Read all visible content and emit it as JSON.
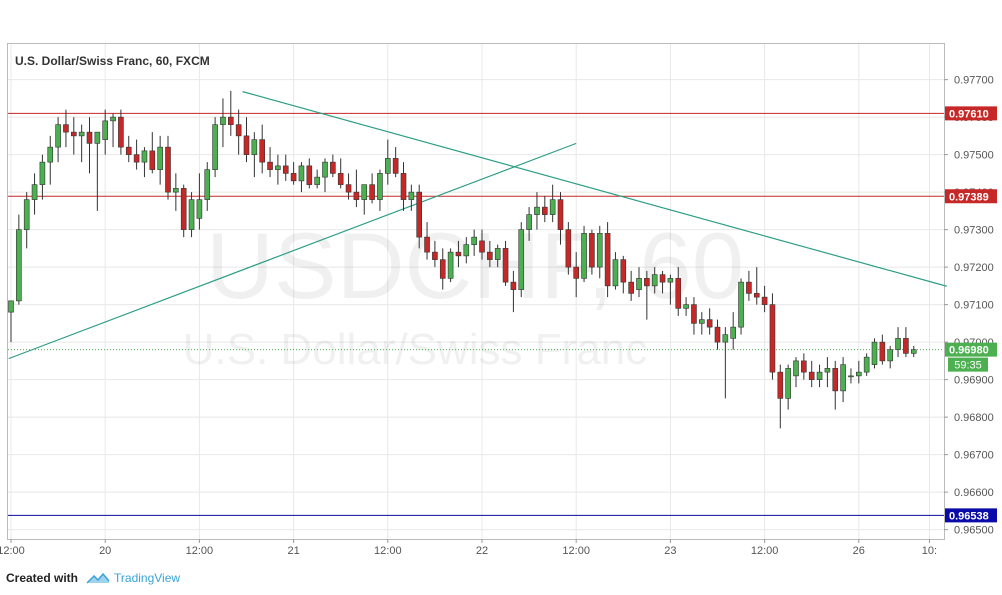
{
  "chart_data": {
    "type": "candlestick",
    "title": "U.S. Dollar/Swiss Franc, 60, FXCM",
    "watermark_symbol": "USDCHF, 60",
    "watermark_name": "U.S. Dollar/Swiss Franc",
    "ylim": [
      0.96475,
      0.97795
    ],
    "y_ticks": [
      "0.97700",
      "0.97600",
      "0.97500",
      "0.97400",
      "0.97300",
      "0.97200",
      "0.97100",
      "0.97000",
      "0.96900",
      "0.96800",
      "0.96700",
      "0.96600",
      "0.96500"
    ],
    "x_ticks": [
      {
        "i": 0,
        "label": "12:00"
      },
      {
        "i": 12,
        "label": "20"
      },
      {
        "i": 24,
        "label": "12:00"
      },
      {
        "i": 36,
        "label": "21"
      },
      {
        "i": 48,
        "label": "12:00"
      },
      {
        "i": 60,
        "label": "22"
      },
      {
        "i": 72,
        "label": "12:00"
      },
      {
        "i": 84,
        "label": "23"
      },
      {
        "i": 96,
        "label": "12:00"
      },
      {
        "i": 108,
        "label": "26"
      },
      {
        "i": 117,
        "label": "10:"
      }
    ],
    "candles": [
      [
        0.9708,
        0.9711,
        0.97,
        0.9711
      ],
      [
        0.9711,
        0.9734,
        0.971,
        0.973
      ],
      [
        0.973,
        0.974,
        0.9725,
        0.9738
      ],
      [
        0.9738,
        0.9745,
        0.9734,
        0.9742
      ],
      [
        0.9742,
        0.975,
        0.9738,
        0.9748
      ],
      [
        0.9748,
        0.9755,
        0.9742,
        0.9752
      ],
      [
        0.9752,
        0.976,
        0.9748,
        0.9758
      ],
      [
        0.9758,
        0.9762,
        0.9752,
        0.9756
      ],
      [
        0.9756,
        0.976,
        0.975,
        0.9755
      ],
      [
        0.9755,
        0.9758,
        0.9748,
        0.9756
      ],
      [
        0.9756,
        0.976,
        0.9745,
        0.9753
      ],
      [
        0.9753,
        0.9756,
        0.9735,
        0.9756
      ],
      [
        0.9754,
        0.9762,
        0.975,
        0.9759
      ],
      [
        0.9759,
        0.9761,
        0.9752,
        0.976
      ],
      [
        0.976,
        0.9762,
        0.975,
        0.9752
      ],
      [
        0.9752,
        0.9755,
        0.9748,
        0.975
      ],
      [
        0.975,
        0.9754,
        0.9746,
        0.9748
      ],
      [
        0.9748,
        0.9752,
        0.9744,
        0.9751
      ],
      [
        0.9751,
        0.9756,
        0.9745,
        0.9746
      ],
      [
        0.9746,
        0.9755,
        0.9742,
        0.9752
      ],
      [
        0.9752,
        0.9755,
        0.9738,
        0.974
      ],
      [
        0.974,
        0.9745,
        0.9735,
        0.9741
      ],
      [
        0.9741,
        0.9742,
        0.9728,
        0.973
      ],
      [
        0.973,
        0.974,
        0.9728,
        0.9738
      ],
      [
        0.9733,
        0.9745,
        0.973,
        0.9738
      ],
      [
        0.9738,
        0.9748,
        0.9735,
        0.9746
      ],
      [
        0.9746,
        0.976,
        0.9744,
        0.9758
      ],
      [
        0.9758,
        0.9765,
        0.9752,
        0.976
      ],
      [
        0.976,
        0.9767,
        0.9755,
        0.9758
      ],
      [
        0.9758,
        0.9762,
        0.975,
        0.9755
      ],
      [
        0.9755,
        0.976,
        0.9748,
        0.975
      ],
      [
        0.975,
        0.9756,
        0.9744,
        0.9754
      ],
      [
        0.9754,
        0.9758,
        0.9745,
        0.9748
      ],
      [
        0.9748,
        0.9752,
        0.9744,
        0.9746
      ],
      [
        0.9746,
        0.975,
        0.9742,
        0.9747
      ],
      [
        0.9747,
        0.975,
        0.9743,
        0.9745
      ],
      [
        0.9745,
        0.9748,
        0.9742,
        0.9743
      ],
      [
        0.9743,
        0.9748,
        0.974,
        0.9747
      ],
      [
        0.9747,
        0.9749,
        0.9741,
        0.9742
      ],
      [
        0.9742,
        0.9746,
        0.9741,
        0.9744
      ],
      [
        0.9744,
        0.9749,
        0.974,
        0.9748
      ],
      [
        0.9748,
        0.975,
        0.9744,
        0.9745
      ],
      [
        0.9745,
        0.9749,
        0.9741,
        0.9742
      ],
      [
        0.9742,
        0.9745,
        0.9738,
        0.974
      ],
      [
        0.974,
        0.9746,
        0.9736,
        0.9738
      ],
      [
        0.9738,
        0.9742,
        0.9734,
        0.9742
      ],
      [
        0.9742,
        0.9745,
        0.9737,
        0.9738
      ],
      [
        0.9738,
        0.9746,
        0.9735,
        0.9745
      ],
      [
        0.9745,
        0.9754,
        0.9742,
        0.9749
      ],
      [
        0.9749,
        0.9752,
        0.9744,
        0.9745
      ],
      [
        0.9745,
        0.9748,
        0.9735,
        0.9738
      ],
      [
        0.9738,
        0.9742,
        0.9735,
        0.974
      ],
      [
        0.974,
        0.9742,
        0.9725,
        0.9728
      ],
      [
        0.9728,
        0.9732,
        0.9722,
        0.9724
      ],
      [
        0.9724,
        0.9727,
        0.972,
        0.9722
      ],
      [
        0.9722,
        0.9725,
        0.9714,
        0.9717
      ],
      [
        0.9717,
        0.9725,
        0.9716,
        0.9724
      ],
      [
        0.9724,
        0.9727,
        0.972,
        0.9723
      ],
      [
        0.9723,
        0.9728,
        0.9721,
        0.9726
      ],
      [
        0.9726,
        0.973,
        0.9723,
        0.9728
      ],
      [
        0.9727,
        0.973,
        0.9722,
        0.9724
      ],
      [
        0.9724,
        0.9727,
        0.972,
        0.9722
      ],
      [
        0.9722,
        0.9726,
        0.972,
        0.9725
      ],
      [
        0.9725,
        0.9727,
        0.9715,
        0.9716
      ],
      [
        0.9716,
        0.9719,
        0.9708,
        0.9714
      ],
      [
        0.9714,
        0.9732,
        0.9712,
        0.973
      ],
      [
        0.973,
        0.9736,
        0.9727,
        0.9734
      ],
      [
        0.9734,
        0.974,
        0.973,
        0.9736
      ],
      [
        0.9736,
        0.9739,
        0.9732,
        0.9734
      ],
      [
        0.9734,
        0.9742,
        0.9732,
        0.9738
      ],
      [
        0.9738,
        0.974,
        0.9726,
        0.973
      ],
      [
        0.973,
        0.9732,
        0.9718,
        0.972
      ],
      [
        0.972,
        0.9724,
        0.9712,
        0.9717
      ],
      [
        0.9717,
        0.9731,
        0.9716,
        0.9729
      ],
      [
        0.9729,
        0.973,
        0.9718,
        0.972
      ],
      [
        0.972,
        0.9731,
        0.9717,
        0.9729
      ],
      [
        0.9729,
        0.9732,
        0.9712,
        0.9715
      ],
      [
        0.9715,
        0.9724,
        0.9714,
        0.9722
      ],
      [
        0.9722,
        0.9723,
        0.9713,
        0.9716
      ],
      [
        0.9716,
        0.9719,
        0.9711,
        0.9713
      ],
      [
        0.9714,
        0.972,
        0.9712,
        0.9717
      ],
      [
        0.9717,
        0.9719,
        0.9706,
        0.9715
      ],
      [
        0.9715,
        0.972,
        0.9713,
        0.9718
      ],
      [
        0.9718,
        0.9719,
        0.9713,
        0.9716
      ],
      [
        0.9716,
        0.9718,
        0.971,
        0.9717
      ],
      [
        0.9717,
        0.972,
        0.9707,
        0.9709
      ],
      [
        0.9709,
        0.9712,
        0.9707,
        0.971
      ],
      [
        0.971,
        0.9712,
        0.9702,
        0.9705
      ],
      [
        0.9705,
        0.9708,
        0.9702,
        0.9706
      ],
      [
        0.9706,
        0.9709,
        0.9702,
        0.9704
      ],
      [
        0.9704,
        0.9706,
        0.9698,
        0.97
      ],
      [
        0.97,
        0.9704,
        0.9685,
        0.9702
      ],
      [
        0.9701,
        0.9708,
        0.9698,
        0.9704
      ],
      [
        0.9704,
        0.9717,
        0.9702,
        0.9716
      ],
      [
        0.9716,
        0.9719,
        0.9711,
        0.9713
      ],
      [
        0.9713,
        0.972,
        0.971,
        0.9712
      ],
      [
        0.9712,
        0.9715,
        0.9708,
        0.971
      ],
      [
        0.971,
        0.9713,
        0.969,
        0.9692
      ],
      [
        0.9692,
        0.9694,
        0.9677,
        0.9685
      ],
      [
        0.9685,
        0.9694,
        0.9682,
        0.9693
      ],
      [
        0.9691,
        0.9696,
        0.9688,
        0.9695
      ],
      [
        0.9695,
        0.9697,
        0.969,
        0.9692
      ],
      [
        0.9692,
        0.9695,
        0.9688,
        0.969
      ],
      [
        0.969,
        0.9694,
        0.9688,
        0.9692
      ],
      [
        0.9692,
        0.9696,
        0.9688,
        0.9693
      ],
      [
        0.9693,
        0.9695,
        0.9682,
        0.9687
      ],
      [
        0.9687,
        0.9696,
        0.9684,
        0.9694
      ],
      [
        0.9691,
        0.9693,
        0.9689,
        0.9691
      ],
      [
        0.9691,
        0.9695,
        0.9689,
        0.9692
      ],
      [
        0.9692,
        0.9697,
        0.9691,
        0.9696
      ],
      [
        0.9694,
        0.9701,
        0.9693,
        0.97
      ],
      [
        0.97,
        0.9702,
        0.9694,
        0.9695
      ],
      [
        0.9695,
        0.9699,
        0.9693,
        0.9698
      ],
      [
        0.9698,
        0.9704,
        0.9696,
        0.9701
      ],
      [
        0.9701,
        0.9704,
        0.9696,
        0.9697
      ],
      [
        0.9697,
        0.9699,
        0.9696,
        0.9698
      ]
    ],
    "horizontal_lines": [
      {
        "price": 0.9761,
        "label": "0.97610",
        "color": "#c62828"
      },
      {
        "price": 0.97389,
        "label": "0.97389",
        "color": "#c62828"
      },
      {
        "price": 0.96538,
        "label": "0.96538",
        "color": "#0a0aa8"
      }
    ],
    "current_price": {
      "price": 0.9698,
      "label": "0.96980",
      "countdown": "59:35",
      "color": "#4caf50"
    },
    "trendlines": [
      {
        "from": [
          29.5,
          0.97668
        ],
        "to": [
          119.2,
          0.97149
        ],
        "color": "#2e9e86"
      },
      {
        "from": [
          -0.3,
          0.96956
        ],
        "to": [
          72,
          0.9753
        ],
        "color": "#2e9e86"
      }
    ],
    "colors": {
      "up": "#4caf50",
      "down": "#c62828",
      "grid": "#e8e8e8"
    }
  },
  "footer": {
    "created_with": "Created with",
    "brand": "TradingView"
  }
}
